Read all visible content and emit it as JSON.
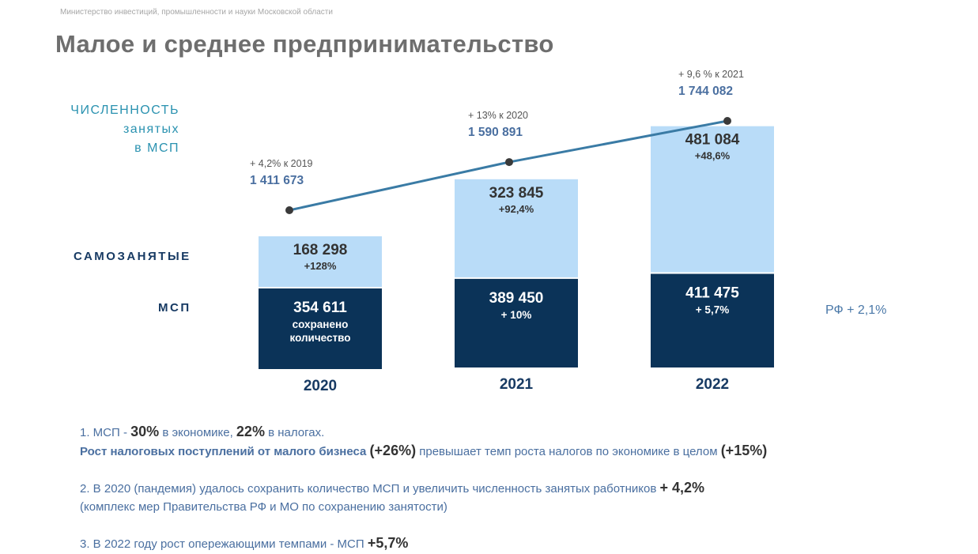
{
  "header": {
    "ministry": "Министерство инвестиций, промышленности и науки Московской области",
    "title": "Малое и среднее предпринимательство"
  },
  "labels": {
    "employment_line1": "ЧИСЛЕННОСТЬ",
    "employment_line2": "занятых",
    "employment_line3": "в МСП",
    "self_employed": "САМОЗАНЯТЫЕ",
    "msp": "МСП",
    "rf_note": "РФ +  2,1%"
  },
  "colors": {
    "msp_bar": "#0b3358",
    "self_bar": "#b9dcf8",
    "line": "#3a7ba5",
    "point": "#3a3a3a",
    "line_value": "#4a6fa0",
    "year": "#173a63"
  },
  "chart_data": {
    "type": "bar",
    "categories": [
      "2020",
      "2021",
      "2022"
    ],
    "series": [
      {
        "name": "МСП",
        "values": [
          354611,
          389450,
          411475
        ],
        "labels": [
          "354 611",
          "389 450",
          "411 475"
        ],
        "sublabels": [
          [
            "сохранено",
            "количество"
          ],
          [
            "+ 10%"
          ],
          [
            "+ 5,7%"
          ]
        ]
      },
      {
        "name": "САМОЗАНЯТЫЕ",
        "values": [
          168298,
          323845,
          481084
        ],
        "labels": [
          "168 298",
          "323 845",
          "481 084"
        ],
        "sublabels": [
          [
            "+128%"
          ],
          [
            "+92,4%"
          ],
          [
            "+48,6%"
          ]
        ]
      }
    ],
    "line": {
      "name": "ЧИСЛЕННОСТЬ занятых в МСП",
      "values": [
        1411673,
        1590891,
        1744082
      ],
      "labels": [
        "1 411 673",
        "1 590 891",
        "1  744 082"
      ],
      "growth": [
        "+ 4,2% к 2019",
        "+ 13% к 2020",
        "+ 9,6 % к 2021"
      ]
    }
  },
  "notes": {
    "n1_a": "1. МСП - ",
    "n1_b": "30%",
    "n1_c": " в экономике, ",
    "n1_d": "22%",
    "n1_e": " в налогах.",
    "n1_f": "Рост налоговых поступлений от малого бизнеса ",
    "n1_g": "(+26%)",
    "n1_h": "  превышает темп роста налогов по экономике  в целом ",
    "n1_i": "(+15%)",
    "n2_a": "2. В 2020 (пандемия) удалось сохранить количество МСП и увеличить численность занятых работников  ",
    "n2_b": "+ 4,2%",
    "n2_c": "(комплекс  мер Правительства РФ  и МО по сохранению занятости)",
    "n3_a": "3. В 2022 году рост  опережающими темпами  - МСП  ",
    "n3_b": "+5,7%"
  }
}
